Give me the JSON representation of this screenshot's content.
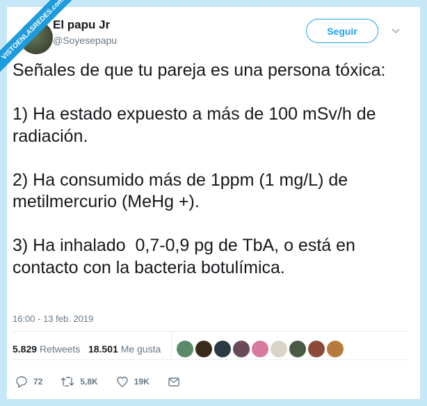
{
  "watermark": "VISTOENLASREDES.com",
  "user": {
    "name": "El papu Jr",
    "handle": "@Soyesepapu"
  },
  "follow_label": "Seguir",
  "tweet_text": "Señales de que tu pareja es una persona tóxica:\n\n1) Ha estado expuesto a más de 100 mSv/h de radiación.\n\n2) Ha consumido más de 1ppm (1 mg/L) de metilmercurio (MeHg +).\n\n3) Ha inhalado  0,7-0,9 pg de TbA, o está en contacto con la bacteria botulímica.",
  "timestamp": "16:00 - 13 feb. 2019",
  "stats": {
    "retweets_count": "5.829",
    "retweets_label": "Retweets",
    "likes_count": "18.501",
    "likes_label": "Me gusta"
  },
  "liker_colors": [
    "#5a8a6a",
    "#3a2a1a",
    "#2a3a44",
    "#6a4a5a",
    "#d87aa0",
    "#d8d4c8",
    "#4a5a44",
    "#8a4a3a",
    "#b87a3a"
  ],
  "actions": {
    "replies": "72",
    "retweets": "5,8K",
    "likes": "19K"
  },
  "colors": {
    "accent": "#1da1f2",
    "background": "#c6e7f8"
  }
}
